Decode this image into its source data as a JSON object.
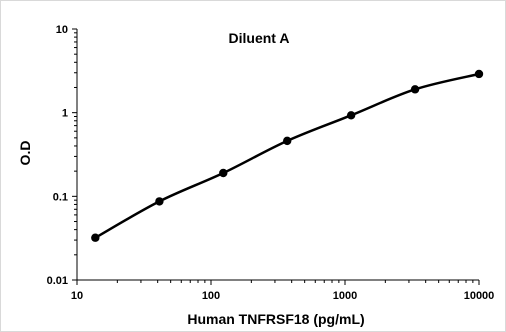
{
  "chart_data": {
    "type": "line",
    "title": "Diluent A",
    "xlabel": "Human TNFRSF18 (pg/mL)",
    "ylabel": "O.D",
    "x_scale": "log",
    "y_scale": "log",
    "xlim": [
      10,
      10000
    ],
    "ylim": [
      0.01,
      10
    ],
    "x_ticks": [
      "10",
      "100",
      "1000",
      "10000"
    ],
    "y_ticks": [
      "0.01",
      "0.1",
      "1",
      "10"
    ],
    "grid": false,
    "legend": "none",
    "series": [
      {
        "x": [
          13.7,
          41.2,
          123.5,
          370.4,
          1111,
          3333,
          10000
        ],
        "y": [
          0.032,
          0.087,
          0.19,
          0.46,
          0.93,
          1.9,
          2.9
        ],
        "color": "#000000"
      }
    ]
  }
}
